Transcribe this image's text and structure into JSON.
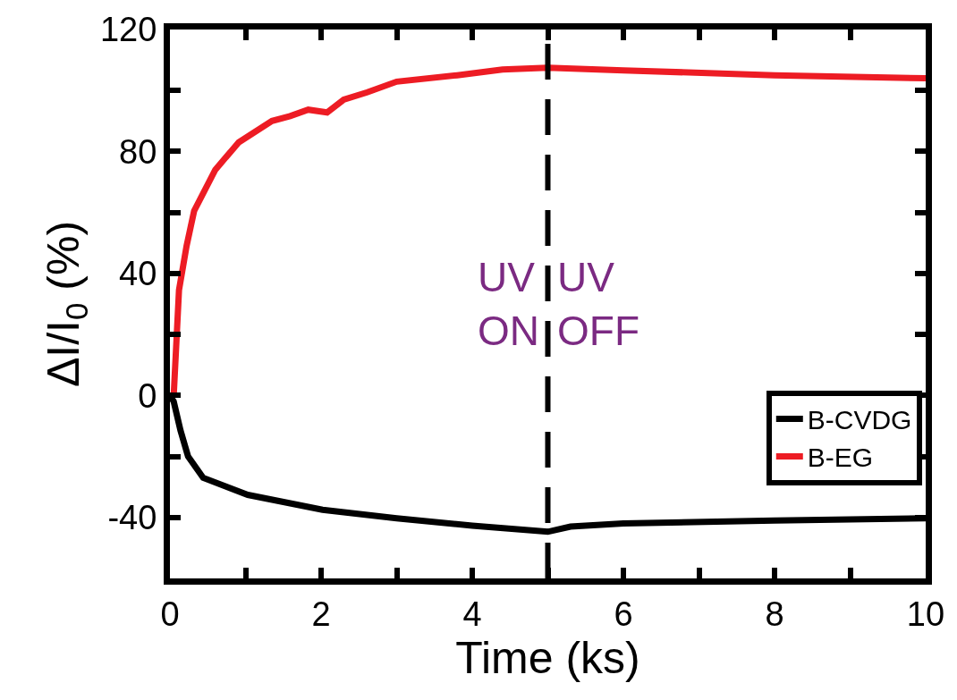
{
  "chart_data": {
    "type": "line",
    "xlabel": "Time (ks)",
    "ylabel": "ΔI/I$_{0}$ (%)",
    "xlim": [
      0,
      10
    ],
    "ylim": [
      -60,
      120
    ],
    "xticks": [
      0,
      {
        "value": 1,
        "label": null
      },
      2,
      {
        "value": 3,
        "label": null
      },
      4,
      {
        "value": 5,
        "label": null
      },
      6,
      {
        "value": 7,
        "label": null
      },
      8,
      {
        "value": 9,
        "label": null
      },
      10
    ],
    "yticks": [
      -40,
      {
        "value": -20,
        "label": null
      },
      0,
      {
        "value": 20,
        "label": null
      },
      40,
      {
        "value": 60,
        "label": null
      },
      80,
      {
        "value": 100,
        "label": null
      },
      120
    ],
    "grid": false,
    "legend": "bottom right",
    "marker": "none",
    "line_style": "solid",
    "series": [
      {
        "name": "B-CVDG",
        "color": "#000000",
        "x": [
          0,
          0.05,
          0.14,
          0.24,
          0.44,
          1.03,
          2.02,
          3.0,
          4.0,
          5.0,
          5.3,
          6,
          8,
          10
        ],
        "values": [
          0,
          -2,
          -11.5,
          -20,
          -27,
          -32.6,
          -37.5,
          -40.3,
          -42.7,
          -44.7,
          -43,
          -42,
          -41,
          -40.3
        ]
      },
      {
        "name": "B-EG",
        "color": "#ed1c24",
        "x": [
          0.05,
          0.12,
          0.22,
          0.32,
          0.6,
          0.91,
          1.35,
          1.59,
          1.83,
          2.08,
          2.3,
          2.61,
          3.0,
          3.8,
          4.4,
          5.0,
          6,
          8,
          10
        ],
        "values": [
          0,
          34.6,
          49,
          60.5,
          74,
          83,
          90,
          91.6,
          93.7,
          92.8,
          97,
          99.4,
          102.9,
          105,
          106.9,
          107.5,
          106.6,
          105,
          104
        ]
      }
    ],
    "ref_lines": [
      {
        "axis": "x",
        "value": 5,
        "color": "#000000",
        "line_style": "dashed"
      }
    ],
    "annotations": [
      "UV\nON",
      "UV\nOFF"
    ]
  }
}
